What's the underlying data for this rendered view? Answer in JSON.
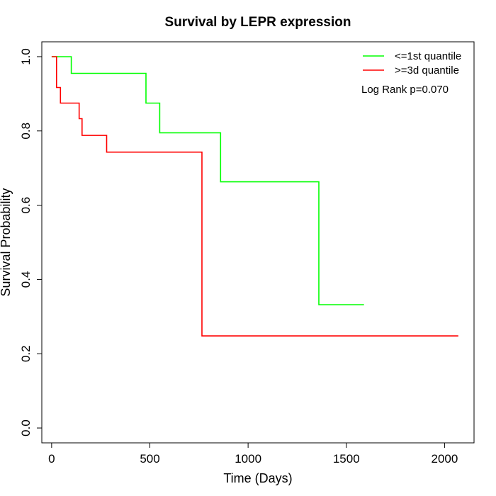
{
  "chart_data": {
    "type": "line",
    "title": "Survival by LEPR expression",
    "xlabel": "Time (Days)",
    "ylabel": "Survival Probability",
    "xlim": [
      -50,
      2150
    ],
    "ylim": [
      -0.04,
      1.04
    ],
    "xticks": [
      0,
      500,
      1000,
      1500,
      2000
    ],
    "xtick_labels": [
      "0",
      "500",
      "1000",
      "1500",
      "2000"
    ],
    "yticks": [
      0.0,
      0.2,
      0.4,
      0.6,
      0.8,
      1.0
    ],
    "ytick_labels": [
      "0.0",
      "0.2",
      "0.4",
      "0.6",
      "0.8",
      "1.0"
    ],
    "grid": false,
    "legend_position": "top-right",
    "annotation": "Log Rank p=0.070",
    "series": [
      {
        "name": "<=1st quantile",
        "color": "#00ff00",
        "step": true,
        "points": [
          [
            0,
            1.0
          ],
          [
            100,
            1.0
          ],
          [
            100,
            0.955
          ],
          [
            480,
            0.955
          ],
          [
            480,
            0.875
          ],
          [
            550,
            0.875
          ],
          [
            550,
            0.795
          ],
          [
            860,
            0.795
          ],
          [
            860,
            0.663
          ],
          [
            1360,
            0.663
          ],
          [
            1360,
            0.332
          ],
          [
            1590,
            0.332
          ]
        ]
      },
      {
        "name": ">=3d quantile",
        "color": "#ff0000",
        "step": true,
        "points": [
          [
            0,
            1.0
          ],
          [
            25,
            1.0
          ],
          [
            25,
            0.917
          ],
          [
            45,
            0.917
          ],
          [
            45,
            0.875
          ],
          [
            140,
            0.875
          ],
          [
            140,
            0.833
          ],
          [
            155,
            0.833
          ],
          [
            155,
            0.788
          ],
          [
            280,
            0.788
          ],
          [
            280,
            0.743
          ],
          [
            765,
            0.743
          ],
          [
            765,
            0.248
          ],
          [
            2070,
            0.248
          ]
        ]
      }
    ]
  }
}
